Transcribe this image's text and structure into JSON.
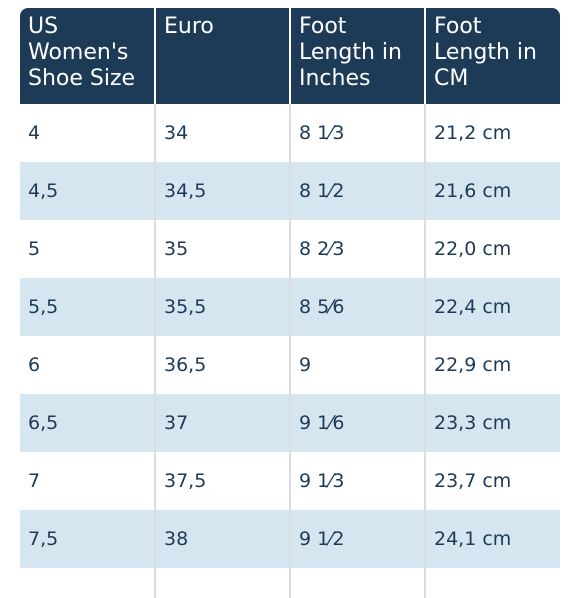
{
  "table": {
    "headers": [
      "US Women's Shoe Size",
      "Euro",
      "Foot Length in Inches",
      "Foot Length in CM"
    ],
    "rows": [
      [
        "4",
        "34",
        "8 1⁄3",
        "21,2 cm"
      ],
      [
        "4,5",
        "34,5",
        "8 1⁄2",
        "21,6 cm"
      ],
      [
        "5",
        "35",
        "8 2⁄3",
        "22,0 cm"
      ],
      [
        "5,5",
        "35,5",
        "8 5⁄6",
        "22,4 cm"
      ],
      [
        "6",
        "36,5",
        "9",
        "22,9 cm"
      ],
      [
        "6,5",
        "37",
        "9 1⁄6",
        "23,3 cm"
      ],
      [
        "7",
        "37,5",
        "9 1⁄3",
        "23,7 cm"
      ],
      [
        "7,5",
        "38",
        "9 1⁄2",
        "24,1 cm"
      ]
    ]
  },
  "colors": {
    "header_bg": "#1d3a56",
    "header_text": "#ffffff",
    "row_alt_bg": "#d5e6f1",
    "cell_text": "#1d3a56"
  }
}
